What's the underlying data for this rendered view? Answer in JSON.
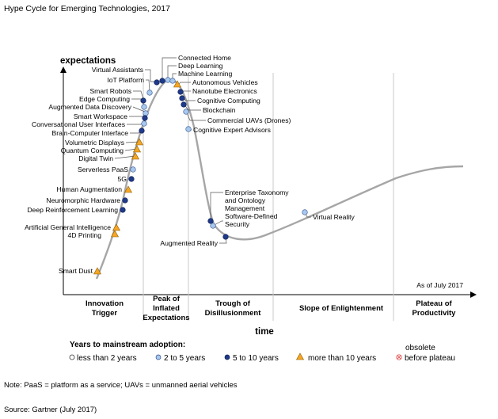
{
  "title": "Hype Cycle for Emerging Technologies, 2017",
  "y_axis_label": "expectations",
  "x_axis_label": "time",
  "as_of": "As of July 2017",
  "phases": [
    {
      "lines": [
        "Innovation",
        "Trigger"
      ]
    },
    {
      "lines": [
        "Peak of",
        "Inflated",
        "Expectations"
      ]
    },
    {
      "lines": [
        "Trough of",
        "Disillusionment"
      ]
    },
    {
      "lines": [
        "Slope of Enlightenment"
      ]
    },
    {
      "lines": [
        "Plateau of",
        "Productivity"
      ]
    }
  ],
  "legend": {
    "title": "Years to mainstream adoption:",
    "items": [
      {
        "label": "less than 2 years",
        "marker": "circle-white"
      },
      {
        "label": "2 to 5 years",
        "marker": "circle-light-blue"
      },
      {
        "label": "5 to 10 years",
        "marker": "circle-dark-blue"
      },
      {
        "label": "more than 10 years",
        "marker": "triangle-orange"
      }
    ],
    "obsolete": {
      "line1": "obsolete",
      "line2": "before plateau",
      "marker": "circle-red-x"
    }
  },
  "note": "Note: PaaS = platform as a service; UAVs = unmanned aerial vehicles",
  "source": "Source: Gartner (July 2017)",
  "colors": {
    "curve": "#a6a6a6",
    "dark_blue": "#1f3a8a",
    "light_blue": "#a9c8ee",
    "orange": "#f5a623",
    "obsolete_red": "#e35a5a",
    "phase_divider": "#c8c8c8"
  },
  "technologies": [
    {
      "name": "Connected Home",
      "years": "5 to 10 years",
      "marker": "circle-dark-blue"
    },
    {
      "name": "Deep Learning",
      "years": "2 to 5 years",
      "marker": "circle-light-blue"
    },
    {
      "name": "Machine Learning",
      "years": "2 to 5 years",
      "marker": "circle-light-blue"
    },
    {
      "name": "Virtual Assistants",
      "years": "5 to 10 years",
      "marker": "circle-dark-blue"
    },
    {
      "name": "IoT Platform",
      "years": "2 to 5 years",
      "marker": "circle-light-blue"
    },
    {
      "name": "Autonomous Vehicles",
      "years": "more than 10 years",
      "marker": "triangle-orange"
    },
    {
      "name": "Nanotube Electronics",
      "years": "5 to 10 years",
      "marker": "circle-dark-blue"
    },
    {
      "name": "Cognitive Computing",
      "years": "5 to 10 years",
      "marker": "circle-dark-blue"
    },
    {
      "name": "Blockchain",
      "years": "5 to 10 years",
      "marker": "circle-dark-blue"
    },
    {
      "name": "Commercial UAVs (Drones)",
      "years": "2 to 5 years",
      "marker": "circle-light-blue"
    },
    {
      "name": "Cognitive Expert Advisors",
      "years": "2 to 5 years",
      "marker": "circle-light-blue"
    },
    {
      "name": "Smart Robots",
      "years": "2 to 5 years",
      "marker": "circle-light-blue"
    },
    {
      "name": "Edge Computing",
      "years": "2 to 5 years",
      "marker": "circle-light-blue"
    },
    {
      "name": "Augmented Data Discovery",
      "years": "2 to 5 years",
      "marker": "circle-light-blue"
    },
    {
      "name": "Smart Workspace",
      "years": "5 to 10 years",
      "marker": "circle-dark-blue"
    },
    {
      "name": "Conversational User Interfaces",
      "years": "2 to 5 years",
      "marker": "circle-light-blue"
    },
    {
      "name": "Brain-Computer Interface",
      "years": "more than 10 years",
      "marker": "triangle-orange"
    },
    {
      "name": "Volumetric Displays",
      "years": "more than 10 years",
      "marker": "triangle-orange"
    },
    {
      "name": "Quantum Computing",
      "years": "more than 10 years",
      "marker": "triangle-orange"
    },
    {
      "name": "Digital Twin",
      "years": "5 to 10 years",
      "marker": "circle-dark-blue"
    },
    {
      "name": "Serverless PaaS",
      "years": "2 to 5 years",
      "marker": "circle-light-blue"
    },
    {
      "name": "5G",
      "years": "5 to 10 years",
      "marker": "circle-dark-blue"
    },
    {
      "name": "Human Augmentation",
      "years": "more than 10 years",
      "marker": "triangle-orange"
    },
    {
      "name": "Neuromorphic Hardware",
      "years": "5 to 10 years",
      "marker": "circle-dark-blue"
    },
    {
      "name": "Deep Reinforcement Learning",
      "years": "5 to 10 years",
      "marker": "circle-dark-blue"
    },
    {
      "name": "Artificial General Intelligence",
      "years": "more than 10 years",
      "marker": "triangle-orange"
    },
    {
      "name": "4D Printing",
      "years": "more than 10 years",
      "marker": "triangle-orange"
    },
    {
      "name": "Smart Dust",
      "years": "more than 10 years",
      "marker": "triangle-orange"
    },
    {
      "name": "Enterprise Taxonomy",
      "years": "5 to 10 years",
      "marker": "circle-dark-blue"
    },
    {
      "name": "and Ontology",
      "years": "5 to 10 years",
      "marker": "circle-dark-blue"
    },
    {
      "name": "Management",
      "years": "5 to 10 years",
      "marker": "circle-dark-blue"
    },
    {
      "name": "Software-Defined",
      "years": "2 to 5 years",
      "marker": "circle-light-blue"
    },
    {
      "name": "Security",
      "years": "2 to 5 years",
      "marker": "circle-light-blue"
    },
    {
      "name": "Augmented Reality",
      "years": "5 to 10 years",
      "marker": "circle-dark-blue"
    },
    {
      "name": "Virtual Reality",
      "years": "2 to 5 years",
      "marker": "circle-light-blue"
    }
  ]
}
